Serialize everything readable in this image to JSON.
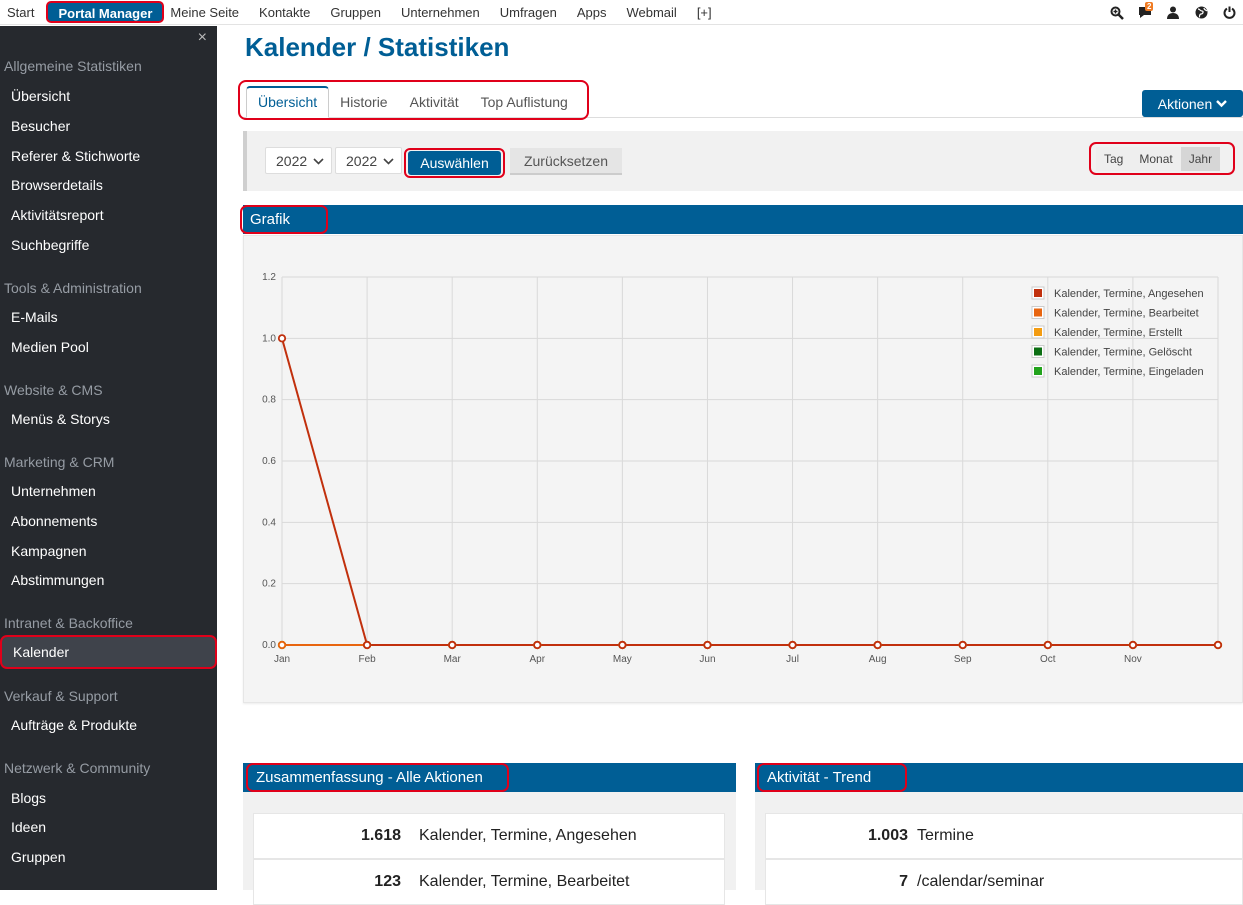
{
  "topnav": {
    "items": [
      "Start",
      "Portal Manager",
      "Meine Seite",
      "Kontakte",
      "Gruppen",
      "Unternehmen",
      "Umfragen",
      "Apps",
      "Webmail",
      "[+]"
    ],
    "active": "Portal Manager",
    "notification_count": "2",
    "icons": [
      "zoom-icon",
      "chat-icon",
      "user-icon",
      "globe-icon",
      "power-icon"
    ]
  },
  "sidebar": {
    "close": "×",
    "groups": [
      {
        "title": "Allgemeine Statistiken",
        "items": [
          "Übersicht",
          "Besucher",
          "Referer & Stichworte",
          "Browserdetails",
          "Aktivitätsreport",
          "Suchbegriffe"
        ]
      },
      {
        "title": "Tools & Administration",
        "items": [
          "E-Mails",
          "Medien Pool"
        ]
      },
      {
        "title": "Website & CMS",
        "items": [
          "Menüs & Storys"
        ]
      },
      {
        "title": "Marketing & CRM",
        "items": [
          "Unternehmen",
          "Abonnements",
          "Kampagnen",
          "Abstimmungen"
        ]
      },
      {
        "title": "Intranet & Backoffice",
        "items": [
          "Kalender"
        ]
      },
      {
        "title": "Verkauf & Support",
        "items": [
          "Aufträge & Produkte"
        ]
      },
      {
        "title": "Netzwerk & Community",
        "items": [
          "Blogs",
          "Ideen",
          "Gruppen"
        ]
      }
    ],
    "active_item": "Kalender"
  },
  "page": {
    "title": "Kalender / Statistiken",
    "tabs": [
      "Übersicht",
      "Historie",
      "Aktivität",
      "Top Auflistung"
    ],
    "active_tab": "Übersicht",
    "actions_label": "Aktionen"
  },
  "filter": {
    "year_from": "2022",
    "year_to": "2022",
    "select_label": "Auswählen",
    "reset_label": "Zurücksetzen",
    "ranges": [
      "Tag",
      "Monat",
      "Jahr"
    ],
    "active_range": "Jahr"
  },
  "grafik": {
    "title": "Grafik"
  },
  "chart_data": {
    "type": "line",
    "x": [
      "Jan",
      "Feb",
      "Mar",
      "Apr",
      "May",
      "Jun",
      "Jul",
      "Aug",
      "Sep",
      "Oct",
      "Nov",
      ""
    ],
    "x_tick_labels": [
      "Jan",
      "Feb",
      "Mar",
      "Apr",
      "May",
      "Jun",
      "Jul",
      "Aug",
      "Sep",
      "Oct",
      "Nov"
    ],
    "y_ticks": [
      "0.0",
      "0.2",
      "0.4",
      "0.6",
      "0.8",
      "1.0",
      "1.2"
    ],
    "ylim": [
      0,
      1.2
    ],
    "grid": true,
    "legend_position": "top-right",
    "series": [
      {
        "name": "Kalender, Termine, Angesehen",
        "color": "#c1300d",
        "values": [
          1,
          0,
          0,
          0,
          0,
          0,
          0,
          0,
          0,
          0,
          0,
          0
        ]
      },
      {
        "name": "Kalender, Termine, Bearbeitet",
        "color": "#e8650f",
        "values": [
          0,
          0,
          0,
          0,
          0,
          0,
          0,
          0,
          0,
          0,
          0,
          0
        ]
      },
      {
        "name": "Kalender, Termine, Erstellt",
        "color": "#f39c12",
        "values": [
          0,
          0,
          0,
          0,
          0,
          0,
          0,
          0,
          0,
          0,
          0,
          0
        ]
      },
      {
        "name": "Kalender, Termine, Gelöscht",
        "color": "#0b6e12",
        "values": [
          0,
          0,
          0,
          0,
          0,
          0,
          0,
          0,
          0,
          0,
          0,
          0
        ]
      },
      {
        "name": "Kalender, Termine, Eingeladen",
        "color": "#22a31c",
        "values": [
          0,
          0,
          0,
          0,
          0,
          0,
          0,
          0,
          0,
          0,
          0,
          0
        ]
      }
    ]
  },
  "summary": {
    "title": "Zusammenfassung - Alle Aktionen",
    "rows": [
      {
        "value": "1.618",
        "label": "Kalender, Termine, Angesehen"
      },
      {
        "value": "123",
        "label": "Kalender, Termine, Bearbeitet"
      }
    ]
  },
  "trend": {
    "title": "Aktivität - Trend",
    "rows": [
      {
        "value": "1.003",
        "label": "Termine"
      },
      {
        "value": "7",
        "label": "/calendar/seminar"
      }
    ]
  }
}
